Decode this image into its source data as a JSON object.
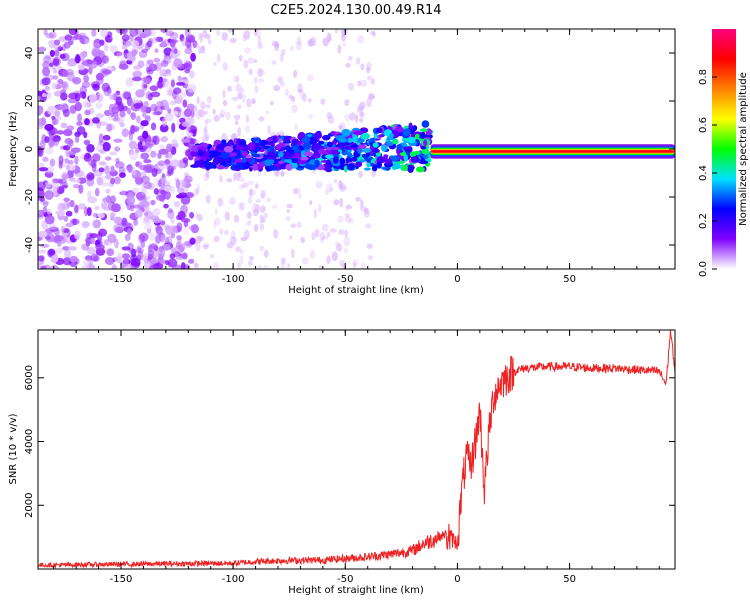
{
  "title": "C2E5.2024.130.00.49.R14",
  "chart_data": [
    {
      "type": "heatmap",
      "xlabel": "Height of straight line (km)",
      "ylabel": "Frequency (Hz)",
      "xlim": [
        -187,
        97
      ],
      "ylim": [
        -50,
        50
      ],
      "xticks": [
        -150,
        -100,
        -50,
        0,
        50
      ],
      "yticks": [
        -40,
        -20,
        0,
        20,
        40
      ],
      "colorbar": {
        "label": "Normalized spectral amplitude",
        "range": [
          0,
          1
        ],
        "ticks": [
          0.0,
          0.2,
          0.4,
          0.6,
          0.8
        ],
        "colors": [
          "#ffffff",
          "#8000ff",
          "#0000ff",
          "#00e0ff",
          "#00ff00",
          "#ffff00",
          "#ff8000",
          "#ff0000",
          "#ff0080"
        ]
      },
      "regions": [
        {
          "x_range": [
            -187,
            -117
          ],
          "freq_range": [
            -50,
            50
          ],
          "amplitude": 0.05
        },
        {
          "x_range": [
            -117,
            -12
          ],
          "center_freq": -3,
          "freq_width": 12,
          "amplitude": 0.3
        },
        {
          "x_range": [
            -12,
            97
          ],
          "center_freq": -1,
          "freq_width": 4,
          "amplitude": 0.9
        }
      ]
    },
    {
      "type": "line",
      "xlabel": "Height of straight line (km)",
      "ylabel": "SNR (10 * v/v)",
      "xlim": [
        -187,
        97
      ],
      "ylim": [
        0,
        7500
      ],
      "xticks": [
        -150,
        -100,
        -50,
        0,
        50
      ],
      "yticks": [
        2000,
        4000,
        6000
      ],
      "color": "#ee2222",
      "x": [
        -187,
        -150,
        -120,
        -100,
        -90,
        -80,
        -70,
        -60,
        -50,
        -40,
        -30,
        -20,
        -15,
        -10,
        -5,
        0,
        2,
        4,
        6,
        8,
        10,
        12,
        14,
        16,
        18,
        20,
        25,
        30,
        40,
        50,
        60,
        70,
        80,
        90,
        93,
        95,
        97
      ],
      "values": [
        120,
        150,
        170,
        180,
        230,
        260,
        270,
        280,
        330,
        380,
        460,
        580,
        800,
        950,
        1100,
        800,
        2500,
        3500,
        3200,
        4000,
        5000,
        2500,
        4200,
        5400,
        5700,
        5900,
        6200,
        6300,
        6350,
        6350,
        6300,
        6300,
        6250,
        6200,
        5800,
        7500,
        6200
      ]
    }
  ]
}
